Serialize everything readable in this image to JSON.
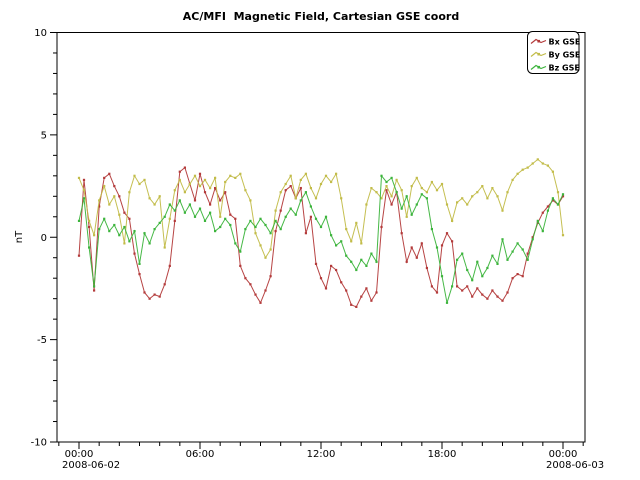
{
  "chart_data": {
    "type": "line",
    "title": "AC/MFI  Magnetic Field, Cartesian GSE coord",
    "ylim": [
      -10,
      10
    ],
    "grid": false,
    "x_axis": {
      "minor_tick_step_hours": 1,
      "major_ticks": [
        {
          "hour": 0,
          "label": "00:00",
          "date_label": "2008-06-02"
        },
        {
          "hour": 6,
          "label": "06:00"
        },
        {
          "hour": 12,
          "label": "12:00"
        },
        {
          "hour": 18,
          "label": "18:00"
        },
        {
          "hour": 24,
          "label": "00:00",
          "date_label": "2008-06-03"
        }
      ]
    },
    "y_axis": {
      "label": "nT",
      "major_ticks": [
        10,
        5,
        0,
        -5,
        -10
      ],
      "minor_tick_step": 1
    },
    "legend": {
      "position": "top-right",
      "entries": [
        "Bx GSE",
        "By GSE",
        "Bz GSE"
      ]
    },
    "x_start_hour": 0,
    "x_step_hours": 0.25,
    "series": [
      {
        "name": "Bx GSE",
        "color": "#b33a3a",
        "values": [
          -0.9,
          2.8,
          0.5,
          -2.6,
          1.5,
          2.9,
          3.1,
          2.5,
          2.0,
          1.2,
          0.9,
          -0.8,
          -1.8,
          -2.7,
          -3.0,
          -2.8,
          -2.9,
          -2.3,
          -1.4,
          0.8,
          3.2,
          3.4,
          2.6,
          1.8,
          3.1,
          2.2,
          1.6,
          2.4,
          1.8,
          2.2,
          1.1,
          0.9,
          -1.4,
          -2.0,
          -2.3,
          -2.8,
          -3.2,
          -2.6,
          -1.9,
          0.3,
          1.3,
          2.3,
          2.5,
          1.9,
          2.4,
          0.2,
          1.0,
          -1.3,
          -2.0,
          -2.5,
          -1.4,
          -1.6,
          -2.2,
          -2.6,
          -3.3,
          -3.4,
          -2.9,
          -2.5,
          -3.1,
          -2.7,
          0.5,
          2.3,
          1.6,
          2.2,
          0.2,
          -1.2,
          -0.5,
          -1.0,
          -0.3,
          -1.5,
          -2.4,
          -2.7,
          -0.4,
          0.2,
          -0.2,
          -2.4,
          -2.6,
          -2.4,
          -2.9,
          -2.5,
          -2.8,
          -3.0,
          -2.6,
          -2.9,
          -3.1,
          -2.7,
          -2.0,
          -1.8,
          -1.9,
          -0.8,
          0.0,
          0.7,
          1.2,
          1.5,
          1.8,
          1.6,
          2.0
        ]
      },
      {
        "name": "By GSE",
        "color": "#c2bc49",
        "values": [
          2.9,
          2.3,
          0.8,
          0.1,
          1.8,
          2.5,
          1.6,
          2.0,
          1.1,
          -0.3,
          2.2,
          3.0,
          2.6,
          2.8,
          1.9,
          1.6,
          2.0,
          -0.5,
          0.9,
          2.3,
          2.8,
          2.2,
          2.6,
          3.0,
          2.5,
          2.8,
          2.4,
          2.9,
          1.0,
          2.7,
          3.0,
          2.9,
          3.1,
          2.3,
          1.8,
          0.2,
          -0.4,
          -1.0,
          -0.6,
          1.3,
          2.2,
          2.6,
          3.0,
          1.9,
          2.8,
          3.1,
          2.4,
          1.9,
          2.6,
          3.0,
          2.7,
          3.1,
          1.9,
          0.4,
          -0.2,
          0.7,
          -0.3,
          1.6,
          2.4,
          2.2,
          1.9,
          2.5,
          2.0,
          2.8,
          2.3,
          1.0,
          2.5,
          2.9,
          2.4,
          2.2,
          2.7,
          2.3,
          2.6,
          1.6,
          0.8,
          1.7,
          1.9,
          1.6,
          2.0,
          2.2,
          2.5,
          1.9,
          2.4,
          2.0,
          1.3,
          2.2,
          2.8,
          3.1,
          3.3,
          3.4,
          3.6,
          3.8,
          3.6,
          3.5,
          3.2,
          2.2,
          0.1
        ]
      },
      {
        "name": "Bz GSE",
        "color": "#3cb43c",
        "values": [
          0.8,
          1.9,
          -0.5,
          -2.4,
          0.4,
          0.9,
          0.3,
          0.6,
          0.1,
          0.5,
          -0.2,
          0.3,
          -1.3,
          0.2,
          -0.3,
          0.4,
          0.7,
          1.0,
          1.6,
          1.3,
          1.8,
          1.2,
          1.6,
          1.0,
          1.4,
          0.8,
          1.2,
          0.3,
          0.5,
          0.9,
          0.6,
          -0.3,
          -0.7,
          0.4,
          0.8,
          0.5,
          0.9,
          0.6,
          0.2,
          0.8,
          0.4,
          1.0,
          1.4,
          1.1,
          1.8,
          2.2,
          1.5,
          0.9,
          0.5,
          1.0,
          0.1,
          -0.4,
          -0.2,
          -0.9,
          -1.2,
          -1.6,
          -1.1,
          -1.4,
          -0.8,
          -1.2,
          3.0,
          2.7,
          2.9,
          2.2,
          1.4,
          2.0,
          1.1,
          1.6,
          2.1,
          1.9,
          0.4,
          -0.5,
          -1.9,
          -3.2,
          -2.4,
          -1.1,
          -0.8,
          -1.6,
          -2.1,
          -1.2,
          -1.9,
          -1.5,
          -0.9,
          -1.3,
          -0.1,
          -1.1,
          -0.7,
          -0.3,
          -0.6,
          -1.1,
          -0.1,
          0.8,
          0.3,
          1.3,
          1.9,
          1.6,
          2.1
        ]
      }
    ]
  }
}
